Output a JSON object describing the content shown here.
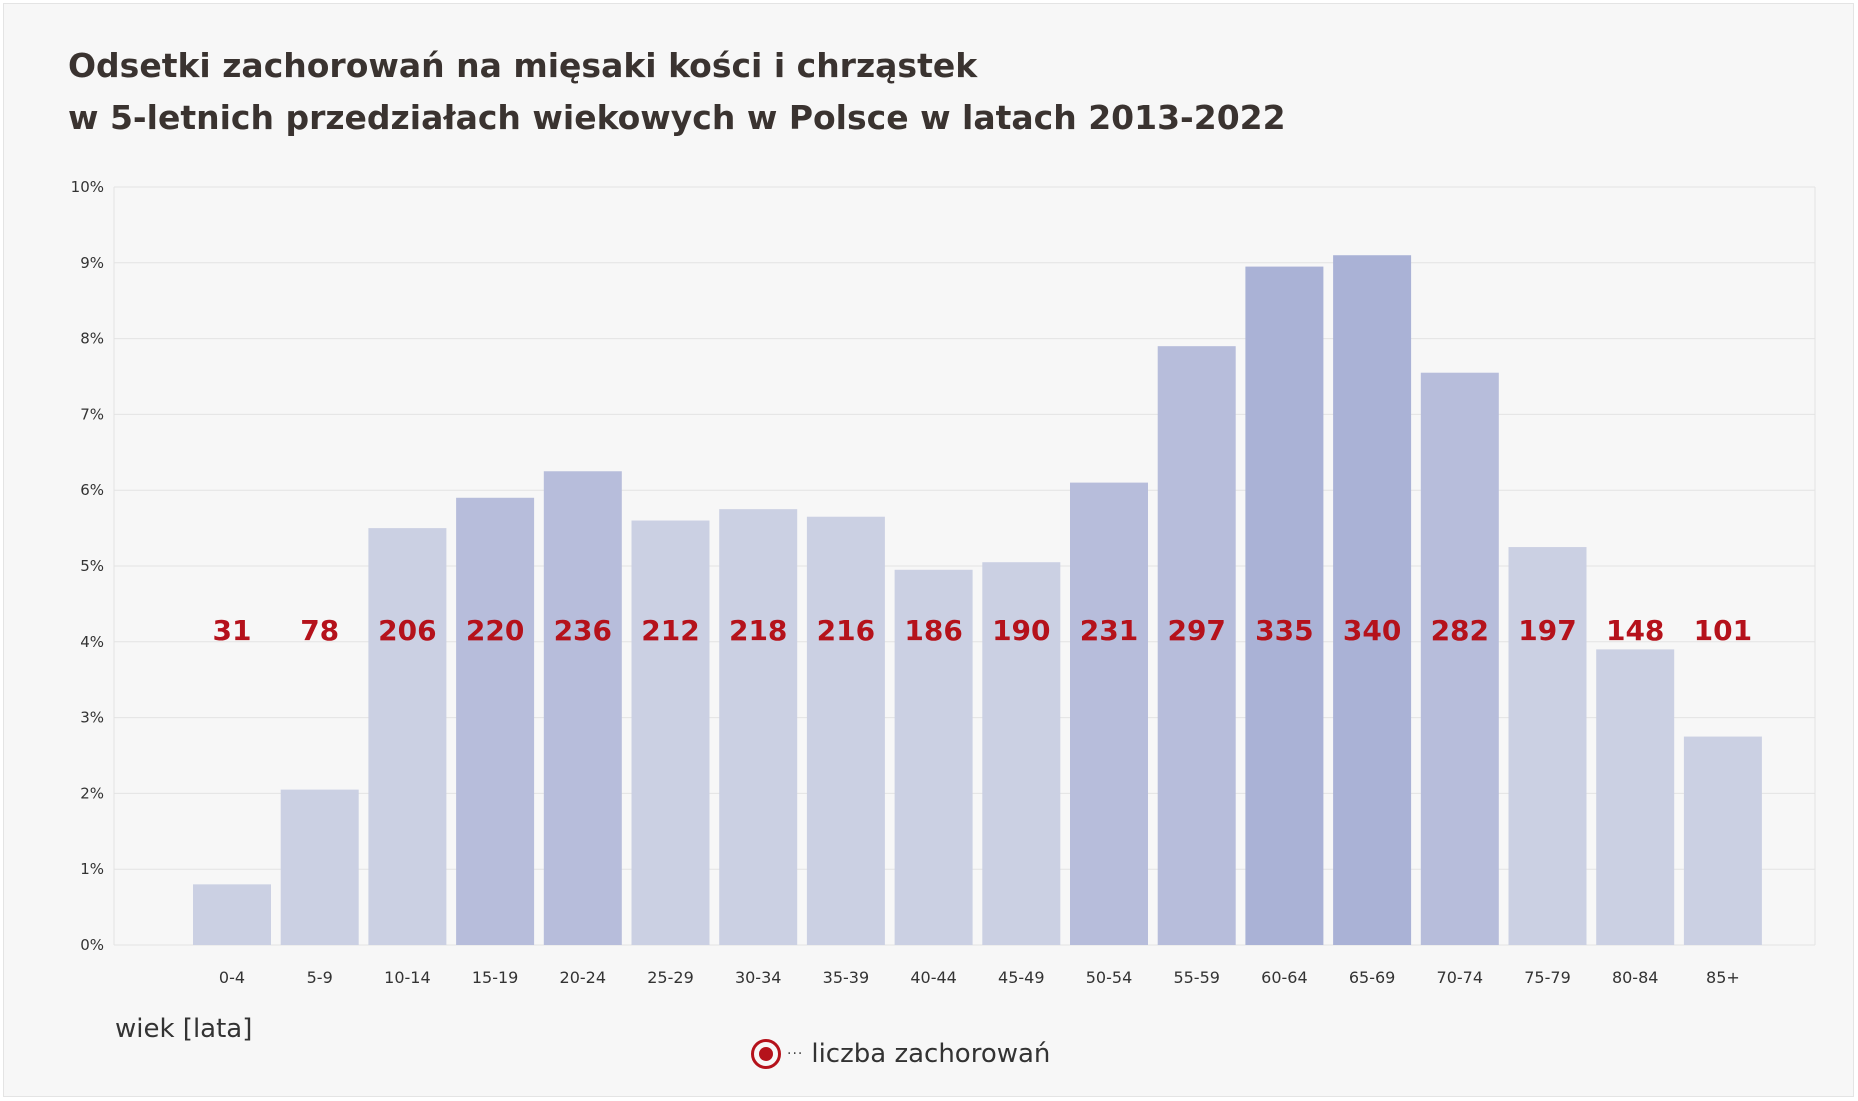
{
  "chart_data": {
    "type": "bar",
    "title": [
      "Odsetki zachorowań na mięsaki kości i chrząstek",
      "w 5-letnich przedziałach wiekowych w Polsce w latach 2013-2022"
    ],
    "xlabel": "wiek [lata]",
    "ylabel": "",
    "ylim": [
      0,
      10
    ],
    "y_ticks": [
      "0%",
      "1%",
      "2%",
      "3%",
      "4%",
      "5%",
      "6%",
      "7%",
      "8%",
      "9%",
      "10%"
    ],
    "categories": [
      "0-4",
      "5-9",
      "10-14",
      "15-19",
      "20-24",
      "25-29",
      "30-34",
      "35-39",
      "40-44",
      "45-49",
      "50-54",
      "55-59",
      "60-64",
      "65-69",
      "70-74",
      "75-79",
      "80-84",
      "85+"
    ],
    "values": [
      0.8,
      2.05,
      5.5,
      5.9,
      6.25,
      5.6,
      5.75,
      5.65,
      4.95,
      5.05,
      6.1,
      7.9,
      8.95,
      9.1,
      7.55,
      5.25,
      3.9,
      2.75
    ],
    "counts": [
      31,
      78,
      206,
      220,
      236,
      212,
      218,
      216,
      186,
      190,
      231,
      297,
      335,
      340,
      282,
      197,
      148,
      101
    ],
    "grid": true,
    "legend": {
      "position": "bottom-center",
      "label": "liczba zachorowań",
      "marker": "circle-dot",
      "marker_symbol": "···"
    },
    "colors": {
      "bar_light": "#cbd0e3",
      "bar_mid": "#b7bddb",
      "bar_dark": "#aab2d6",
      "count_label": "#b5121b",
      "grid": "#e3e3e3",
      "background": "#f7f7f7",
      "title": "#3a3330"
    }
  }
}
